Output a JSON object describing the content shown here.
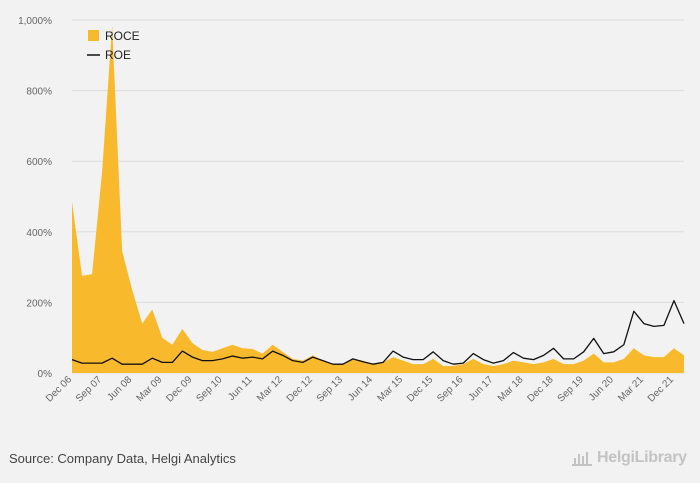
{
  "chart_data": {
    "type": "area",
    "y_tick_labels": [
      "0%",
      "200%",
      "400%",
      "600%",
      "800%",
      "1,000%"
    ],
    "y_ticks": [
      0,
      200,
      400,
      600,
      800,
      1000
    ],
    "ylim": [
      0,
      1000
    ],
    "x_tick_labels": [
      "Dec 06",
      "Sep 07",
      "Jun 08",
      "Mar 09",
      "Dec 09",
      "Sep 10",
      "Jun 11",
      "Mar 12",
      "Dec 12",
      "Sep 13",
      "Jun 14",
      "Mar 15",
      "Dec 15",
      "Sep 16",
      "Jun 17",
      "Mar 18",
      "Dec 18",
      "Sep 19",
      "Jun 20",
      "Mar 21",
      "Dec 21"
    ],
    "x": [
      "Dec 06",
      "Mar 07",
      "Jun 07",
      "Sep 07",
      "Dec 07",
      "Mar 08",
      "Jun 08",
      "Sep 08",
      "Dec 08",
      "Mar 09",
      "Jun 09",
      "Sep 09",
      "Dec 09",
      "Mar 10",
      "Jun 10",
      "Sep 10",
      "Dec 10",
      "Mar 11",
      "Jun 11",
      "Sep 11",
      "Dec 11",
      "Mar 12",
      "Jun 12",
      "Sep 12",
      "Dec 12",
      "Mar 13",
      "Jun 13",
      "Sep 13",
      "Dec 13",
      "Mar 14",
      "Jun 14",
      "Sep 14",
      "Dec 14",
      "Mar 15",
      "Jun 15",
      "Sep 15",
      "Dec 15",
      "Mar 16",
      "Jun 16",
      "Sep 16",
      "Dec 16",
      "Mar 17",
      "Jun 17",
      "Sep 17",
      "Dec 17",
      "Mar 18",
      "Jun 18",
      "Sep 18",
      "Dec 18",
      "Mar 19",
      "Jun 19",
      "Sep 19",
      "Dec 19",
      "Mar 20",
      "Jun 20",
      "Sep 20",
      "Dec 20",
      "Mar 21",
      "Jun 21",
      "Sep 21",
      "Dec 21",
      "Mar 22"
    ],
    "grid": true,
    "legend_position": "top-left",
    "series": [
      {
        "name": "ROCE",
        "type": "area",
        "color": "#f9b92d",
        "values": [
          485,
          275,
          280,
          570,
          985,
          345,
          235,
          140,
          180,
          100,
          80,
          125,
          85,
          65,
          60,
          70,
          80,
          70,
          68,
          55,
          80,
          60,
          40,
          35,
          50,
          35,
          25,
          25,
          40,
          35,
          25,
          30,
          45,
          35,
          25,
          25,
          40,
          20,
          20,
          25,
          40,
          25,
          20,
          25,
          35,
          30,
          25,
          30,
          40,
          25,
          25,
          35,
          55,
          30,
          30,
          40,
          70,
          50,
          45,
          45,
          70,
          50
        ]
      },
      {
        "name": "ROE",
        "type": "line",
        "color": "#111111",
        "values": [
          38,
          28,
          28,
          28,
          42,
          25,
          25,
          25,
          42,
          30,
          30,
          62,
          45,
          35,
          35,
          40,
          48,
          42,
          45,
          40,
          62,
          50,
          35,
          30,
          45,
          35,
          25,
          25,
          40,
          32,
          25,
          30,
          62,
          45,
          38,
          38,
          60,
          35,
          25,
          28,
          55,
          38,
          28,
          35,
          58,
          42,
          38,
          50,
          70,
          40,
          40,
          60,
          98,
          55,
          60,
          80,
          175,
          140,
          132,
          135,
          205,
          140
        ]
      }
    ]
  },
  "footer": {
    "source": "Source: Company Data, Helgi Analytics",
    "brand": "HelgiLibrary"
  }
}
